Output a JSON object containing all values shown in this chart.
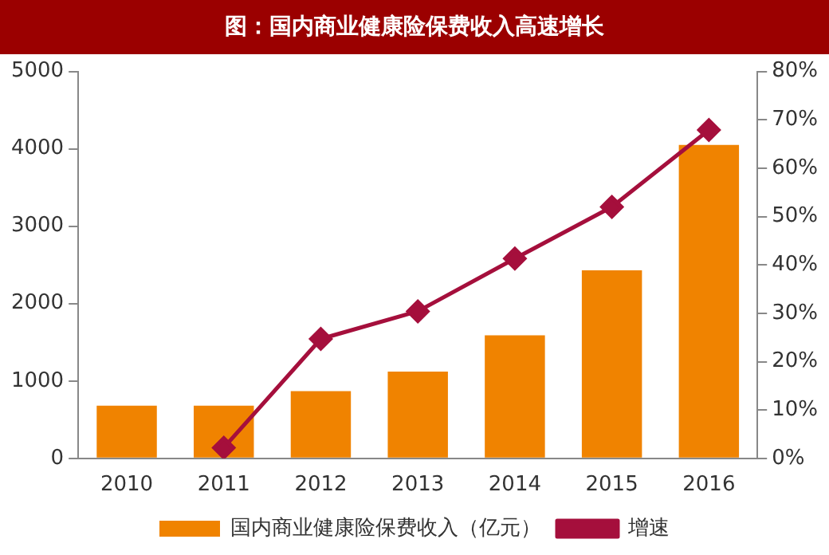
{
  "chart_data": {
    "type": "bar",
    "title": "图：国内商业健康险保费收入高速增长",
    "categories": [
      "2010",
      "2011",
      "2012",
      "2013",
      "2014",
      "2015",
      "2016"
    ],
    "series": [
      {
        "name": "国内商业健康险保费收入（亿元）",
        "color": "#f08300",
        "values": [
          680,
          680,
          870,
          1120,
          1590,
          2430,
          4050
        ]
      },
      {
        "name": "增速",
        "type": "line",
        "axis": "y2",
        "color": "#a50f3c",
        "marker": "diamond",
        "values": [
          null,
          2.2,
          24.7,
          30.4,
          41.3,
          52.0,
          67.9
        ]
      }
    ],
    "ylim": [
      0,
      5000
    ],
    "yticks": [
      0,
      1000,
      2000,
      3000,
      4000,
      5000
    ],
    "y2lim": [
      0,
      80
    ],
    "y2ticks": [
      {
        "value": 0,
        "label": "0%"
      },
      {
        "value": 10,
        "label": "10%"
      },
      {
        "value": 20,
        "label": "20%"
      },
      {
        "value": 30,
        "label": "30%"
      },
      {
        "value": 40,
        "label": "40%"
      },
      {
        "value": 50,
        "label": "50%"
      },
      {
        "value": 60,
        "label": "60%"
      },
      {
        "value": 70,
        "label": "70%"
      },
      {
        "value": 80,
        "label": "80%"
      }
    ],
    "grid": false,
    "legend": "bottom"
  }
}
